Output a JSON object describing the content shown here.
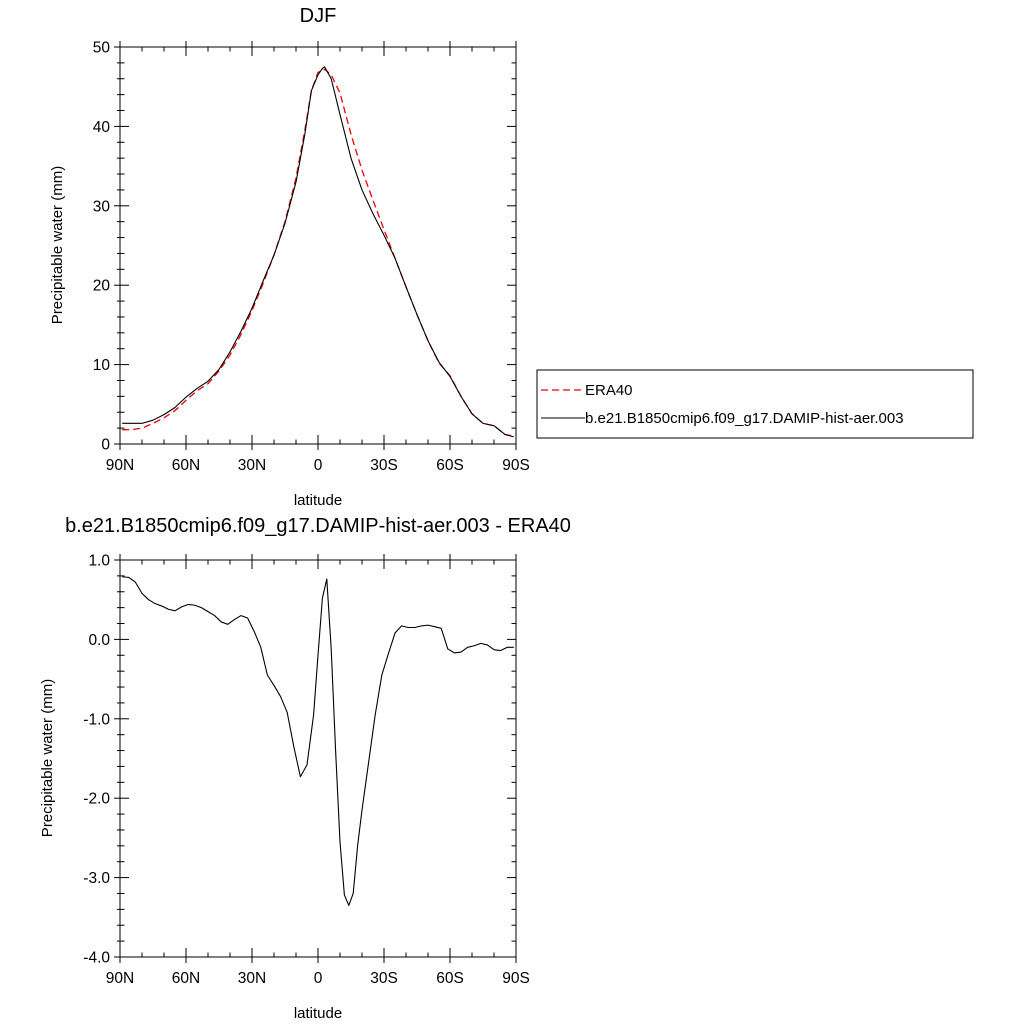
{
  "chart_data": [
    {
      "type": "line",
      "title": "DJF",
      "xlabel": "latitude",
      "ylabel": "Precipitable water (mm)",
      "xlim": [
        -90,
        90
      ],
      "ylim": [
        0,
        50
      ],
      "x_tick_labels": [
        "90N",
        "60N",
        "30N",
        "0",
        "30S",
        "60S",
        "90S"
      ],
      "y_tick_labels": [
        "0",
        "10",
        "20",
        "30",
        "40",
        "50"
      ],
      "legend": {
        "placement": "right",
        "entries": [
          "ERA40",
          "b.e21.B1850cmip6.f09_g17.DAMIP-hist-aer.003"
        ]
      },
      "series": [
        {
          "name": "ERA40",
          "color": "#e8000b",
          "style": "dashed",
          "x": [
            -89,
            -85,
            -80,
            -75,
            -70,
            -65,
            -60,
            -55,
            -50,
            -45,
            -40,
            -35,
            -30,
            -25,
            -20,
            -15,
            -10,
            -6,
            -3,
            0,
            3,
            6,
            10,
            15,
            20,
            25,
            30,
            35,
            40,
            45,
            50,
            55,
            60,
            65,
            70,
            75,
            80,
            85,
            89
          ],
          "y": [
            1.8,
            1.8,
            2.0,
            2.6,
            3.3,
            4.2,
            5.5,
            6.7,
            7.6,
            9.2,
            11.2,
            13.8,
            16.8,
            20.2,
            23.8,
            28.0,
            33.5,
            39.5,
            44.5,
            46.8,
            47.2,
            46.5,
            44.2,
            39.0,
            34.5,
            30.7,
            27.0,
            23.4,
            19.8,
            16.3,
            13.0,
            10.2,
            8.6,
            6.0,
            3.8,
            2.6,
            2.3,
            1.2,
            1.0
          ]
        },
        {
          "name": "b.e21.B1850cmip6.f09_g17.DAMIP-hist-aer.003",
          "color": "#000000",
          "style": "solid",
          "x": [
            -89,
            -85,
            -80,
            -75,
            -70,
            -65,
            -60,
            -55,
            -50,
            -45,
            -40,
            -35,
            -30,
            -25,
            -20,
            -15,
            -10,
            -6,
            -3,
            0,
            2,
            3,
            6,
            10,
            15,
            20,
            25,
            30,
            35,
            40,
            45,
            50,
            55,
            60,
            65,
            70,
            75,
            80,
            85,
            89
          ],
          "y": [
            2.6,
            2.6,
            2.6,
            3.0,
            3.7,
            4.6,
            5.9,
            7.0,
            7.9,
            9.4,
            11.6,
            14.2,
            17.1,
            20.5,
            23.8,
            27.8,
            33.0,
            39.0,
            44.5,
            46.5,
            47.3,
            47.5,
            46.0,
            41.5,
            36.0,
            32.0,
            29.0,
            26.3,
            23.4,
            19.8,
            16.3,
            13.0,
            10.3,
            8.5,
            6.0,
            3.8,
            2.6,
            2.3,
            1.2,
            0.9
          ]
        }
      ]
    },
    {
      "type": "line",
      "title": "b.e21.B1850cmip6.f09_g17.DAMIP-hist-aer.003 - ERA40",
      "xlabel": "latitude",
      "ylabel": "Precipitable water (mm)",
      "xlim": [
        -90,
        90
      ],
      "ylim": [
        -4.0,
        1.0
      ],
      "x_tick_labels": [
        "90N",
        "60N",
        "30N",
        "0",
        "30S",
        "60S",
        "90S"
      ],
      "y_tick_labels": [
        "-4.0",
        "-3.0",
        "-2.0",
        "-1.0",
        "0.0",
        "1.0"
      ],
      "series": [
        {
          "color": "#000000",
          "style": "solid",
          "x": [
            -89,
            -86,
            -83,
            -80,
            -77,
            -74,
            -71,
            -68,
            -65,
            -62,
            -59,
            -56,
            -53,
            -50,
            -47,
            -44,
            -41,
            -38,
            -35,
            -32,
            -29,
            -26,
            -23,
            -20,
            -17,
            -14,
            -11,
            -8,
            -5,
            -2,
            0,
            2,
            4,
            6,
            8,
            10,
            12,
            14,
            16,
            18,
            20,
            23,
            26,
            29,
            32,
            35,
            38,
            41,
            44,
            47,
            50,
            53,
            56,
            59,
            62,
            65,
            68,
            71,
            74,
            77,
            80,
            83,
            86,
            89
          ],
          "y": [
            0.79,
            0.78,
            0.72,
            0.58,
            0.5,
            0.45,
            0.42,
            0.38,
            0.36,
            0.41,
            0.44,
            0.43,
            0.4,
            0.35,
            0.3,
            0.22,
            0.19,
            0.25,
            0.3,
            0.27,
            0.1,
            -0.1,
            -0.45,
            -0.58,
            -0.72,
            -0.92,
            -1.35,
            -1.73,
            -1.58,
            -0.95,
            -0.2,
            0.52,
            0.76,
            -0.12,
            -1.4,
            -2.55,
            -3.22,
            -3.35,
            -3.2,
            -2.6,
            -2.15,
            -1.55,
            -0.95,
            -0.45,
            -0.18,
            0.08,
            0.17,
            0.15,
            0.15,
            0.17,
            0.18,
            0.16,
            0.14,
            -0.12,
            -0.17,
            -0.16,
            -0.1,
            -0.08,
            -0.05,
            -0.07,
            -0.13,
            -0.14,
            -0.1,
            -0.1
          ]
        }
      ]
    }
  ]
}
